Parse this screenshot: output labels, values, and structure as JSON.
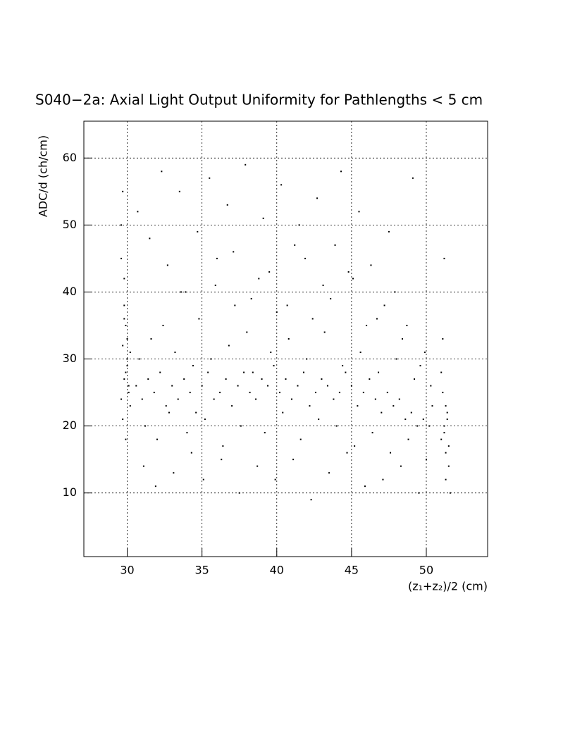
{
  "chart_data": {
    "type": "scatter",
    "title": "S040−2a: Axial Light Output Uniformity for Pathlengths < 5 cm",
    "x_label": "(z₁+z₂)/2 (cm)",
    "y_label": "ADC/d (ch/cm)",
    "xlim": [
      27.1,
      54.1
    ],
    "ylim": [
      0.5,
      65.5
    ],
    "xticks": [
      30,
      35,
      40,
      45,
      50
    ],
    "yticks": [
      10,
      20,
      30,
      40,
      50,
      60
    ],
    "grid": true,
    "color": "#000000",
    "x": [
      29.6,
      29.8,
      30.0,
      30.1,
      29.7,
      29.9,
      30.2,
      29.8,
      29.6,
      30.0,
      29.7,
      29.9,
      30.1,
      29.8,
      30.0,
      29.7,
      29.9,
      29.6,
      30.2,
      29.8,
      30.6,
      31.0,
      31.4,
      31.8,
      32.2,
      32.6,
      33.0,
      33.4,
      33.8,
      34.2,
      34.6,
      35.0,
      35.4,
      35.8,
      36.2,
      36.6,
      37.0,
      37.4,
      37.8,
      38.2,
      38.6,
      39.0,
      39.4,
      39.8,
      40.2,
      40.6,
      41.0,
      41.4,
      41.8,
      42.2,
      42.6,
      43.0,
      43.4,
      43.8,
      44.2,
      44.6,
      45.0,
      45.4,
      45.8,
      46.2,
      46.6,
      47.0,
      47.4,
      47.8,
      48.2,
      48.6,
      49.0,
      49.4,
      49.8,
      50.2,
      30.8,
      31.2,
      31.6,
      32.0,
      32.4,
      32.8,
      33.2,
      33.6,
      34.0,
      34.4,
      34.8,
      35.2,
      35.6,
      36.0,
      36.4,
      36.8,
      37.2,
      37.6,
      38.0,
      38.4,
      38.8,
      39.2,
      39.6,
      40.0,
      40.4,
      40.8,
      41.2,
      41.6,
      42.0,
      42.4,
      42.8,
      43.2,
      43.6,
      44.0,
      44.4,
      44.8,
      45.2,
      45.6,
      46.0,
      46.4,
      46.8,
      47.2,
      47.6,
      48.0,
      48.4,
      48.8,
      49.2,
      49.6,
      50.0,
      50.4,
      30.7,
      31.1,
      31.5,
      31.9,
      32.3,
      32.7,
      33.1,
      33.5,
      33.9,
      34.3,
      34.7,
      35.1,
      35.5,
      35.9,
      36.3,
      36.7,
      37.1,
      37.5,
      37.9,
      38.3,
      38.7,
      39.1,
      39.5,
      39.9,
      40.3,
      40.7,
      41.1,
      41.5,
      41.9,
      42.3,
      42.7,
      43.1,
      43.5,
      43.9,
      44.3,
      44.7,
      45.1,
      45.5,
      45.9,
      46.3,
      46.7,
      47.1,
      47.5,
      47.9,
      48.3,
      48.7,
      49.1,
      49.5,
      49.9,
      50.3,
      51.0,
      51.2,
      51.3,
      51.4,
      51.1,
      51.5,
      51.2,
      51.3,
      51.4,
      51.0,
      51.5,
      51.6,
      51.2,
      51.3,
      51.1
    ],
    "values": [
      24,
      27,
      29,
      26,
      32,
      35,
      23,
      38,
      45,
      30,
      21,
      28,
      25,
      42,
      33,
      55,
      18,
      50,
      31,
      36,
      26,
      24,
      27,
      25,
      28,
      23,
      26,
      24,
      27,
      25,
      22,
      26,
      28,
      24,
      25,
      27,
      23,
      26,
      28,
      25,
      24,
      27,
      26,
      29,
      25,
      27,
      24,
      26,
      28,
      23,
      25,
      27,
      26,
      24,
      25,
      28,
      26,
      23,
      25,
      27,
      24,
      22,
      25,
      23,
      24,
      21,
      22,
      20,
      21,
      20,
      30,
      20,
      33,
      18,
      35,
      22,
      31,
      40,
      19,
      29,
      36,
      21,
      30,
      45,
      17,
      32,
      38,
      20,
      34,
      28,
      42,
      19,
      31,
      37,
      22,
      33,
      47,
      18,
      30,
      36,
      21,
      34,
      39,
      20,
      29,
      43,
      17,
      31,
      35,
      19,
      28,
      38,
      16,
      30,
      33,
      18,
      27,
      29,
      15,
      23,
      52,
      14,
      48,
      11,
      58,
      44,
      13,
      55,
      40,
      16,
      49,
      12,
      57,
      41,
      15,
      53,
      46,
      10,
      59,
      39,
      14,
      51,
      43,
      12,
      56,
      38,
      15,
      50,
      45,
      9,
      54,
      41,
      13,
      47,
      58,
      16,
      42,
      52,
      11,
      44,
      36,
      12,
      49,
      40,
      14,
      35,
      57,
      10,
      31,
      26,
      18,
      20,
      16,
      22,
      25,
      14,
      19,
      12,
      21,
      28,
      17,
      10,
      45,
      23,
      33
    ]
  }
}
